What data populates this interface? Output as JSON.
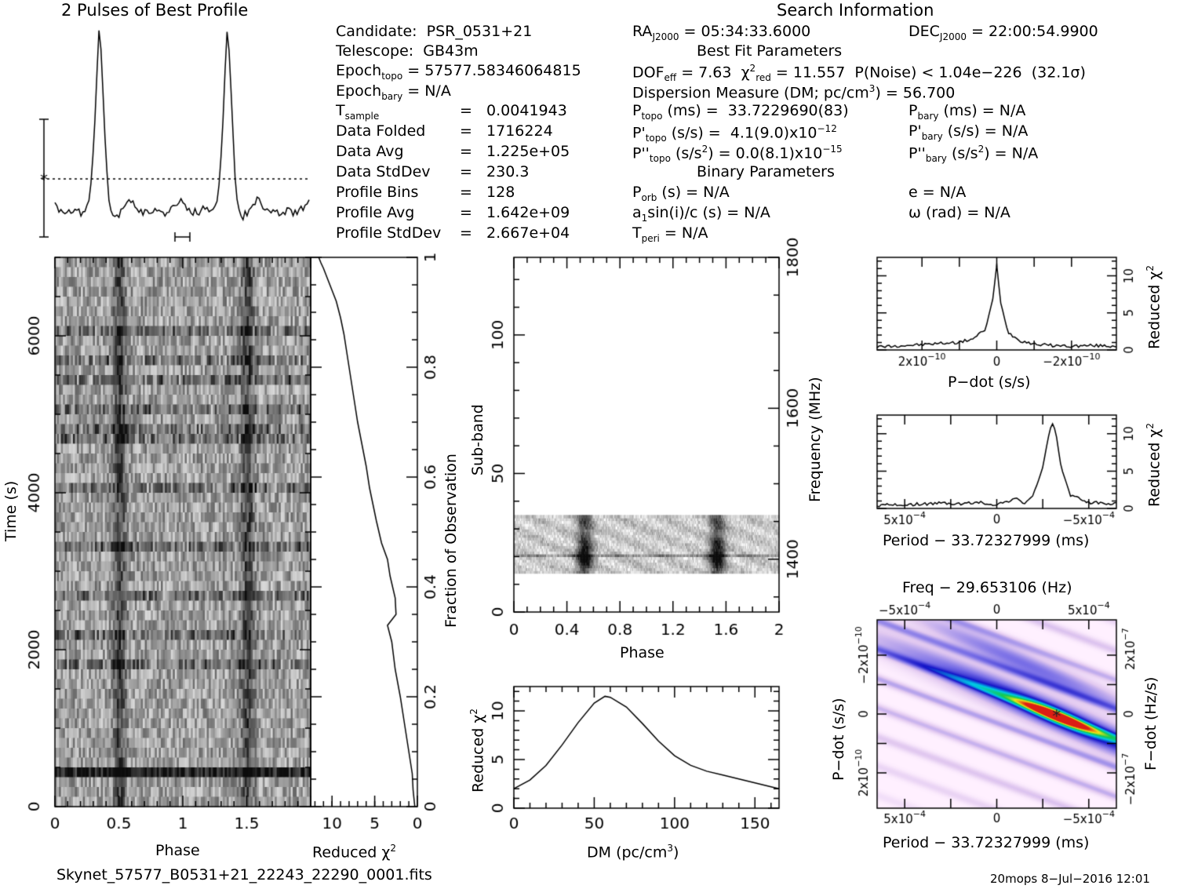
{
  "header": {
    "profile_title": "2 Pulses of Best Profile",
    "search_title": "Search Information",
    "best_fit_title": "Best Fit Parameters",
    "binary_title": "Binary Parameters"
  },
  "info": {
    "candidate": "PSR_0531+21",
    "telescope": "GB43m",
    "epoch_topo": "57577.58346064815",
    "epoch_bary": "N/A",
    "t_sample": "0.0041943",
    "data_folded": "1716224",
    "data_avg": "1.225e+05",
    "data_stddev": "230.3",
    "profile_bins": "128",
    "profile_avg": "1.642e+09",
    "profile_stddev": "2.667e+04",
    "ra": "05:34:33.6000",
    "dec": "22:00:54.9900",
    "dof_eff": "7.63",
    "chi2_red": "11.557",
    "p_noise": "1.04e−226",
    "sigma": "(32.1σ)",
    "dm": "56.700",
    "p_topo": "33.7229690(83)",
    "pdot_topo": "4.1(9.0)x10",
    "pdot_exp": "−12",
    "pddot_topo": "0.0(8.1)x10",
    "pddot_exp": "−15",
    "p_bary": "N/A",
    "pdot_bary": "N/A",
    "pddot_bary": "N/A",
    "p_orb": "N/A",
    "a1sini": "N/A",
    "t_peri": "N/A",
    "e": "N/A",
    "omega": "N/A"
  },
  "footer": {
    "filename": "Skynet_57577_B0531+21_22243_22290_0001.fits",
    "stamp": "20mops   8−Jul−2016 12:01"
  },
  "chart_data": [
    {
      "type": "line",
      "panel": "profile",
      "title": "2 Pulses of Best Profile",
      "xlim": [
        0,
        2
      ],
      "peaks_at_phase": [
        0.53,
        1.53
      ],
      "samples": [
        0.1,
        0.08,
        0.06,
        0.07,
        0.05,
        0.04,
        0.06,
        0.05,
        0.04,
        0.05,
        0.07,
        0.05,
        0.06,
        0.04,
        0.05,
        0.06,
        0.08,
        0.12,
        0.2,
        0.35,
        0.55,
        0.8,
        1.0,
        0.9,
        0.7,
        0.45,
        0.25,
        0.12,
        0.06,
        0.03,
        0.02,
        0.04,
        0.03,
        0.05,
        0.07,
        0.09,
        0.1,
        0.12,
        0.11,
        0.1,
        0.08,
        0.07,
        0.06,
        0.05,
        0.04,
        0.05,
        0.06,
        0.05,
        0.04,
        0.05,
        0.06,
        0.05,
        0.07,
        0.06,
        0.05,
        0.04,
        0.06,
        0.05,
        0.07,
        0.08,
        0.07,
        0.09,
        0.1,
        0.12
      ]
    },
    {
      "type": "heatmap",
      "panel": "time-phase",
      "xlabel": "Phase",
      "ylabel": "Time (s)",
      "x_ticks": [
        "0",
        "0.5",
        "1",
        "1.5"
      ],
      "y_ticks": [
        "0",
        "2000",
        "4000",
        "6000"
      ],
      "xlim": [
        0,
        2
      ],
      "ylim": [
        0,
        7000
      ]
    },
    {
      "type": "line",
      "panel": "time-chi2",
      "xlabel": "Reduced χ",
      "x_ticks": [
        "10",
        "5",
        "0"
      ],
      "y_ticks_right": [
        "0",
        "0.2",
        "0.4",
        "0.6",
        "0.8",
        "1"
      ],
      "ylabel_right": "Fraction of Observation",
      "xlim": [
        12.5,
        0
      ],
      "ylim": [
        0,
        1
      ],
      "x": [
        0.3,
        0.5,
        0.6,
        1.0,
        1.5,
        2.0,
        2.6,
        3.0,
        3.5,
        2.5,
        2.6,
        3.2,
        3.5,
        4.2,
        4.8,
        5.2,
        5.6,
        6.0,
        6.5,
        7.0,
        7.4,
        7.8,
        8.2,
        8.6,
        9.0,
        9.5,
        10.0,
        10.5,
        11.0,
        11.3,
        11.557
      ],
      "y": [
        0.0,
        0.03,
        0.06,
        0.1,
        0.15,
        0.2,
        0.25,
        0.3,
        0.33,
        0.35,
        0.38,
        0.42,
        0.45,
        0.48,
        0.52,
        0.55,
        0.58,
        0.62,
        0.66,
        0.7,
        0.74,
        0.78,
        0.82,
        0.86,
        0.89,
        0.92,
        0.94,
        0.96,
        0.98,
        0.99,
        1.0
      ]
    },
    {
      "type": "heatmap",
      "panel": "subband-phase",
      "xlabel": "Phase",
      "ylabel": "Sub-band",
      "ylabel_right": "Frequency (MHz)",
      "x_ticks": [
        "0",
        "0.4",
        "0.8",
        "1.2",
        "1.6",
        "2"
      ],
      "y_ticks": [
        "0",
        "50",
        "100"
      ],
      "y_ticks_right": [
        "1400",
        "1600",
        "1800"
      ],
      "xlim": [
        0,
        2
      ],
      "ylim": [
        0,
        128
      ],
      "data_rows": [
        14,
        35
      ]
    },
    {
      "type": "line",
      "panel": "dm-chi2",
      "xlabel": "DM (pc/cm",
      "ylabel": "Reduced χ",
      "x_ticks": [
        "0",
        "50",
        "100",
        "150"
      ],
      "y_ticks": [
        "0",
        "5",
        "10"
      ],
      "xlim": [
        0,
        165
      ],
      "ylim": [
        0,
        12.5
      ],
      "x": [
        0,
        10,
        20,
        30,
        40,
        50,
        56.7,
        60,
        70,
        80,
        90,
        100,
        110,
        120,
        130,
        140,
        150,
        165
      ],
      "y": [
        2.0,
        2.9,
        4.4,
        6.5,
        8.8,
        10.8,
        11.5,
        11.4,
        10.4,
        8.7,
        6.9,
        5.4,
        4.4,
        3.8,
        3.4,
        3.0,
        2.6,
        2.0
      ]
    },
    {
      "type": "line",
      "panel": "pdot-chi2",
      "xlabel": "P−dot (s/s)",
      "ylabel_right": "Reduced χ",
      "x_ticks": [
        "2x10",
        "0",
        "−2x10"
      ],
      "x_tick_exp": "−10",
      "y_ticks_right": [
        "0",
        "5",
        "10"
      ],
      "xlim": [
        3.2e-10,
        -3.2e-10
      ],
      "ylim": [
        0,
        12.5
      ],
      "x": [
        3.2e-10,
        2.5e-10,
        2e-10,
        1.5e-10,
        1e-10,
        6e-11,
        3e-11,
        1e-11,
        0.0,
        -1e-11,
        -3e-11,
        -6e-11,
        -1e-10,
        -1.5e-10,
        -2e-10,
        -2.5e-10,
        -3.2e-10
      ],
      "y": [
        0.4,
        0.6,
        0.7,
        0.9,
        1.0,
        1.6,
        2.8,
        7.0,
        11.5,
        6.5,
        2.4,
        1.3,
        0.8,
        0.6,
        0.5,
        0.6,
        0.5
      ]
    },
    {
      "type": "line",
      "panel": "period-chi2",
      "xlabel": "Period − 33.72327999 (ms)",
      "ylabel_right": "Reduced χ",
      "x_ticks": [
        "5x10",
        "0",
        "−5x10"
      ],
      "x_tick_exp": "−4",
      "y_ticks_right": [
        "0",
        "5",
        "10"
      ],
      "xlim": [
        0.00065,
        -0.00065
      ],
      "ylim": [
        0,
        12.5
      ],
      "x": [
        0.00065,
        0.0005,
        0.0004,
        0.0003,
        0.0002,
        0.0001,
        0,
        -0.0001,
        -0.00015,
        -0.0002,
        -0.00025,
        -0.00028,
        -0.0003,
        -0.00032,
        -0.00035,
        -0.0004,
        -0.0005,
        -0.00065
      ],
      "y": [
        0.4,
        0.5,
        0.6,
        0.7,
        0.6,
        0.8,
        0.5,
        1.3,
        0.7,
        1.8,
        5.5,
        9.5,
        11.5,
        10.3,
        5.5,
        1.8,
        0.8,
        0.6
      ]
    },
    {
      "type": "heatmap",
      "panel": "pdot-period",
      "title": "Freq − 29.653106 (Hz)",
      "xlabel": "Period − 33.72327999 (ms)",
      "ylabel": "P−dot (s/s)",
      "ylabel_right": "F−dot (Hz/s)",
      "x_ticks": [
        "5x10",
        "0",
        "−5x10"
      ],
      "x_tick_exp": "−4",
      "top_ticks": [
        "−5x10",
        "0",
        "5x10"
      ],
      "top_tick_exp": "−4",
      "y_ticks": [
        "−2x10",
        "0",
        "2x10"
      ],
      "y_tick_exp": "−10",
      "y_ticks_right": [
        "2x10",
        "0",
        "−2x10"
      ],
      "y_tick_right_exp": "−7",
      "best": {
        "period": -0.0003,
        "pdot": 0.0
      }
    }
  ]
}
